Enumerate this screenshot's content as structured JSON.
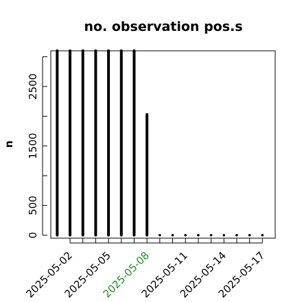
{
  "chart_data": {
    "type": "bar",
    "title": "no. observation pos.s",
    "ylabel": "n",
    "xlabel": "",
    "ylim": [
      -50,
      3100
    ],
    "x_range": [
      "2025-04-30T12:00",
      "2025-05-18T00:00"
    ],
    "y_ticks": [
      0,
      500,
      1500,
      2500
    ],
    "y_minor_ticks": [
      0,
      500,
      1000,
      1500,
      2000,
      2500,
      3000
    ],
    "x_ticks": [
      "2025-05-02",
      "2025-05-05",
      "2025-05-08",
      "2025-05-11",
      "2025-05-14",
      "2025-05-17"
    ],
    "x_tick_colors": [
      "#000000",
      "#000000",
      "#228B22",
      "#000000",
      "#000000",
      "#000000"
    ],
    "x_minor_ticks": [
      "2025-05-02",
      "2025-05-03",
      "2025-05-04",
      "2025-05-05",
      "2025-05-06",
      "2025-05-07",
      "2025-05-08",
      "2025-05-09",
      "2025-05-10",
      "2025-05-11",
      "2025-05-12",
      "2025-05-13",
      "2025-05-14",
      "2025-05-15",
      "2025-05-16",
      "2025-05-17"
    ],
    "x": [
      "2025-05-01",
      "2025-05-02",
      "2025-05-03",
      "2025-05-04",
      "2025-05-05",
      "2025-05-06",
      "2025-05-07",
      "2025-05-08",
      "2025-05-09",
      "2025-05-10",
      "2025-05-11",
      "2025-05-12",
      "2025-05-13",
      "2025-05-14",
      "2025-05-15",
      "2025-05-16",
      "2025-05-17"
    ],
    "values": [
      3100,
      3100,
      3100,
      3100,
      3100,
      3100,
      3100,
      2030,
      0,
      0,
      0,
      0,
      0,
      0,
      0,
      0,
      0
    ],
    "bar_color": "#000000",
    "grid": false,
    "legend": "none"
  }
}
